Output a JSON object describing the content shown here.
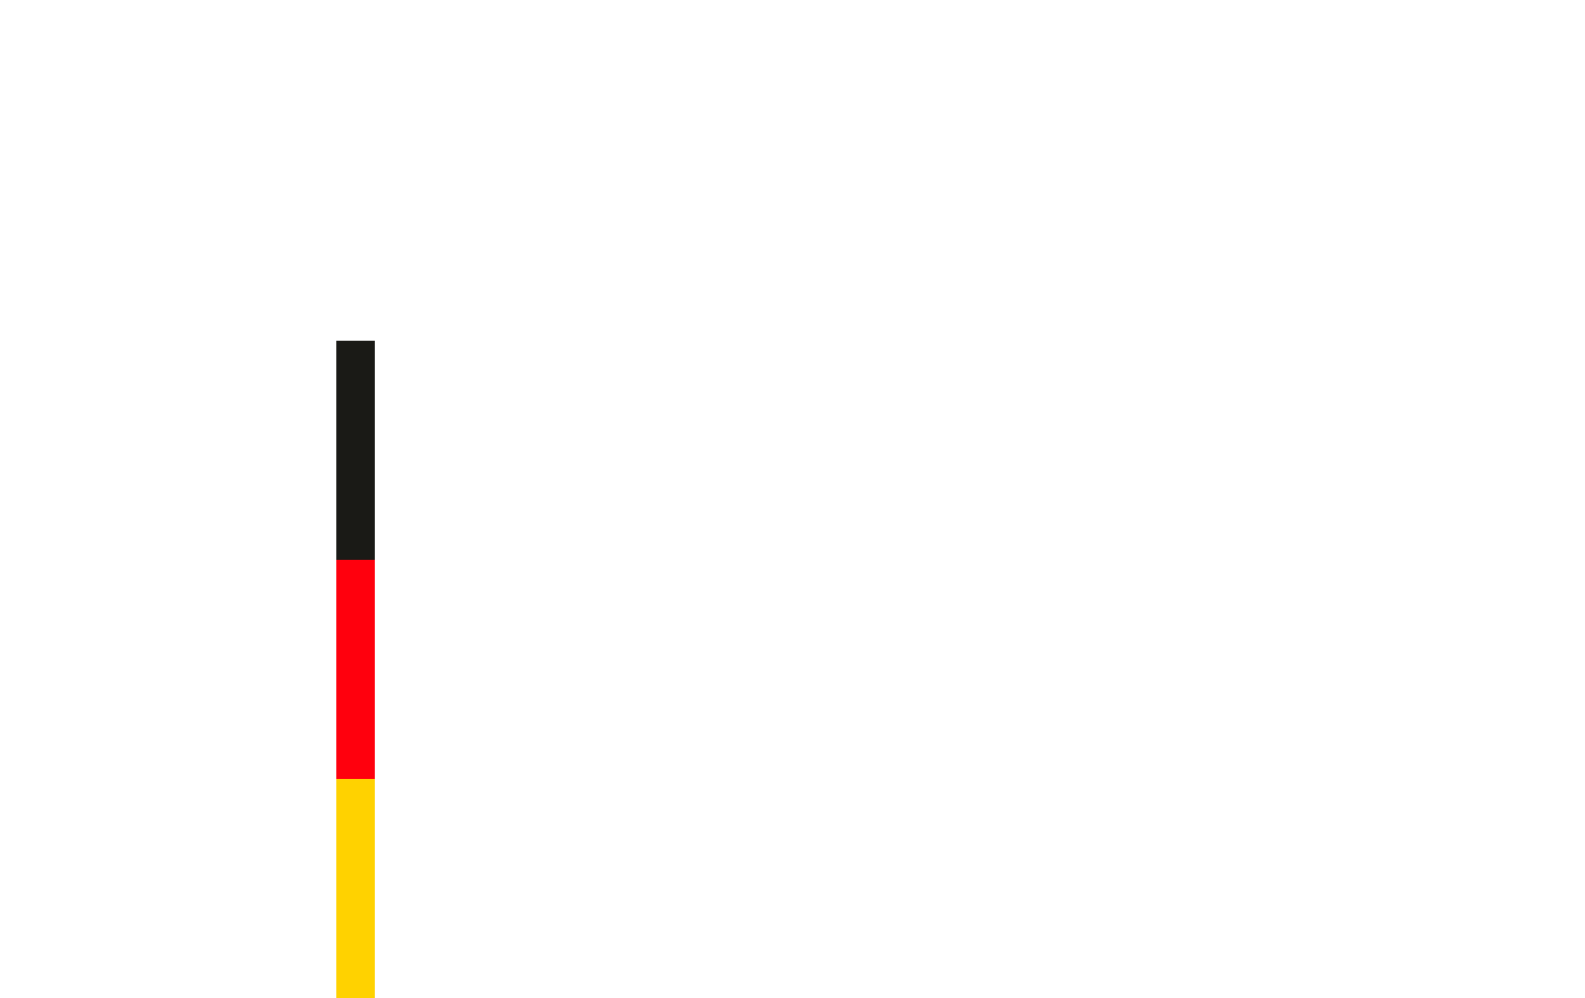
{
  "flag": {
    "orientation": "vertical",
    "stripes": [
      {
        "name": "black",
        "color": "#1a1a16"
      },
      {
        "name": "red",
        "color": "#ff000d"
      },
      {
        "name": "gold",
        "color": "#ffd200"
      }
    ]
  }
}
